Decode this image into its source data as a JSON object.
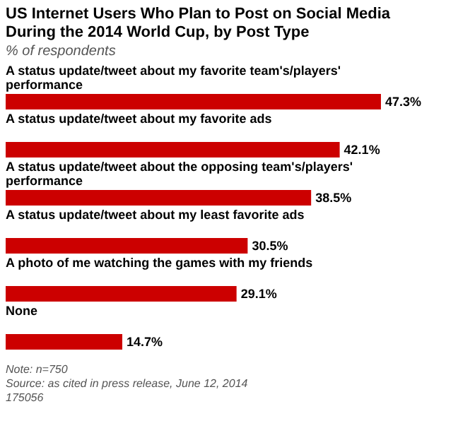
{
  "chart_data": {
    "type": "bar",
    "orientation": "horizontal",
    "title": "US Internet Users Who Plan to Post on Social Media During the 2014 World Cup, by Post Type",
    "subtitle": "% of respondents",
    "categories": [
      "A status update/tweet about my favorite team's/players' performance",
      "A status update/tweet about my favorite ads",
      "A status update/tweet about the opposing team's/players' performance",
      "A status update/tweet about my least favorite ads",
      "A photo of me watching the games with my friends",
      "None"
    ],
    "values": [
      47.3,
      42.1,
      38.5,
      30.5,
      29.1,
      14.7
    ],
    "value_labels": [
      "47.3%",
      "42.1%",
      "38.5%",
      "30.5%",
      "29.1%",
      "14.7%"
    ],
    "color": "#cc0000",
    "annotations": [
      "Note: n=750",
      "Source: as cited in press release, June 12, 2014",
      "175056"
    ]
  }
}
